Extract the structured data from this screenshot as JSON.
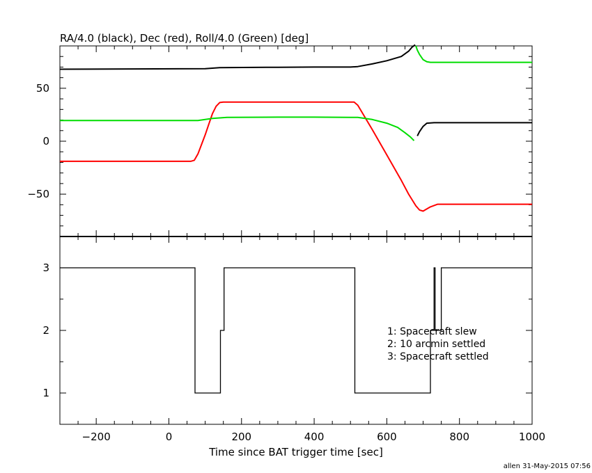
{
  "chart_data": [
    {
      "type": "line",
      "title": "RA/4.0 (black), Dec (red), Roll/4.0 (Green) [deg]",
      "xlim": [
        -300,
        1000
      ],
      "ylim": [
        -90,
        90
      ],
      "yticks": [
        -50,
        0,
        50
      ],
      "ytick_labels": [
        "−50",
        "0",
        "50"
      ],
      "grid": false,
      "series": [
        {
          "color": "#000000",
          "x": [
            -300,
            100,
            140,
            300,
            400,
            500,
            520,
            560,
            600,
            640,
            660,
            670,
            678,
            684,
            690,
            700,
            710,
            730,
            760,
            800,
            1000
          ],
          "y": [
            68,
            68.5,
            69.5,
            69.8,
            70,
            70,
            70.5,
            73,
            76,
            80,
            85,
            89,
            91,
            5,
            9,
            14,
            17,
            17.5,
            17.5,
            17.5,
            17.5
          ],
          "y_note_removed": true
        },
        {
          "color": "#ff0000",
          "x": [
            -300,
            60,
            70,
            80,
            90,
            100,
            110,
            120,
            130,
            140,
            150,
            300,
            400,
            500,
            510,
            520,
            560,
            600,
            640,
            660,
            680,
            690,
            700,
            710,
            720,
            740,
            760,
            800,
            1000
          ],
          "y": [
            -19,
            -19,
            -18,
            -12,
            -3,
            6,
            16,
            26,
            33,
            36.5,
            37,
            37,
            37,
            37,
            37,
            34,
            11,
            -13,
            -37,
            -50,
            -61,
            -65,
            -66,
            -64,
            -62,
            -59.5,
            -59.5,
            -59.5,
            -59.5
          ],
          "y_note_removed": true
        },
        {
          "color": "#00dd00",
          "x": [
            -300,
            80,
            100,
            120,
            140,
            160,
            300,
            400,
            500,
            520,
            560,
            600,
            630,
            650,
            665,
            675,
            680,
            684,
            690,
            700,
            710,
            720,
            730,
            760,
            1000
          ],
          "y": [
            19.5,
            19.5,
            20.5,
            21.5,
            22,
            22.5,
            22.7,
            22.7,
            22.5,
            22.5,
            20.5,
            17,
            13,
            8,
            4,
            0.5,
            90,
            86,
            82,
            77,
            75,
            74.5,
            74.5,
            74.5,
            74.5
          ]
        }
      ]
    },
    {
      "type": "line",
      "xlabel": "Time since BAT trigger time [sec]",
      "xlim": [
        -300,
        1000
      ],
      "ylim": [
        0.5,
        3.5
      ],
      "xticks": [
        -200,
        0,
        200,
        400,
        600,
        800,
        1000
      ],
      "xtick_labels": [
        "−200",
        "0",
        "200",
        "400",
        "600",
        "800",
        "1000"
      ],
      "yticks": [
        1,
        2,
        3
      ],
      "ytick_labels": [
        "1",
        "2",
        "3"
      ],
      "legend_position": "right",
      "annotations": [
        "1: Spacecraft slew",
        "2: 10 arcmin settled",
        "3: Spacecraft settled"
      ],
      "series": [
        {
          "color": "#000000",
          "step": true,
          "x": [
            -300,
            72,
            72,
            142,
            142,
            152,
            152,
            512,
            512,
            720,
            720,
            730,
            730,
            733,
            733,
            750,
            750,
            1000
          ],
          "y": [
            3,
            3,
            1,
            1,
            2,
            2,
            3,
            3,
            1,
            1,
            2,
            2,
            3,
            3,
            2,
            2,
            3,
            3
          ]
        }
      ]
    }
  ],
  "footer": "allen 31-May-2015 07:56"
}
